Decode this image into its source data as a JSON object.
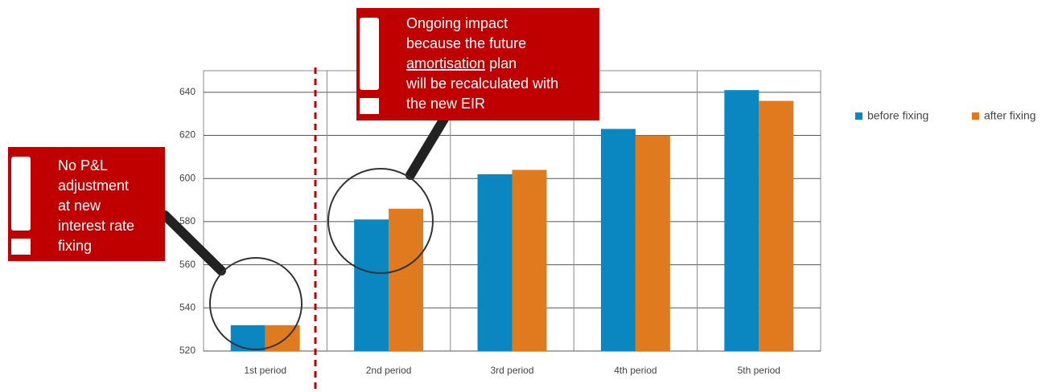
{
  "chart_data": {
    "type": "bar",
    "categories": [
      "1st period",
      "2nd period",
      "3rd period",
      "4th period",
      "5th period"
    ],
    "series": [
      {
        "name": "before fixing",
        "color": "#0a86c0",
        "values": [
          532,
          581,
          602,
          623,
          641
        ]
      },
      {
        "name": "after fixing",
        "color": "#e07a1f",
        "values": [
          532,
          586,
          604,
          620,
          636
        ]
      }
    ],
    "ylim": [
      520,
      650
    ],
    "yticks": [
      520,
      540,
      560,
      580,
      600,
      620,
      640
    ],
    "grid": true,
    "legend": "right",
    "annotations": [
      {
        "lines": [
          "No P&L",
          "adjustment",
          "at new",
          "interest rate",
          "fixing"
        ]
      },
      {
        "lines": [
          "Ongoing impact",
          "because the future",
          {
            "underlined": "amortisation",
            "rest": "plan"
          },
          "will be recalculated with",
          "the new EIR"
        ]
      }
    ]
  }
}
